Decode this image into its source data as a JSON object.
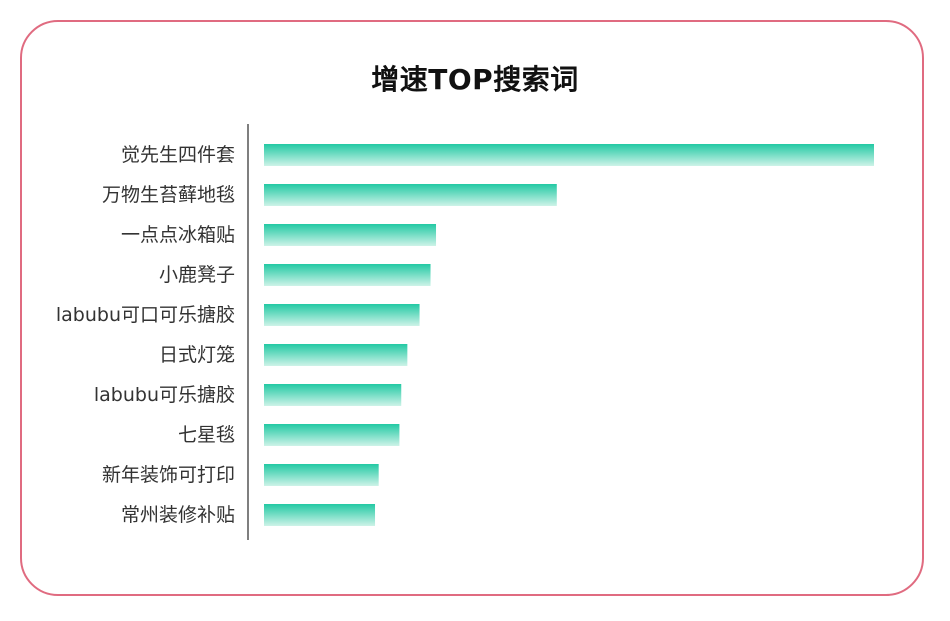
{
  "chart_data": {
    "type": "bar",
    "orientation": "horizontal",
    "title": "增速TOP搜索词",
    "categories": [
      "觉先生四件套",
      "万物生苔藓地毯",
      "一点点冰箱贴",
      "小鹿凳子",
      "labubu可口可乐搪胶",
      "日式灯笼",
      "labubu可乐搪胶",
      "七星毯",
      "新年装饰可打印",
      "常州装修补贴"
    ],
    "values": [
      100,
      48,
      28.2,
      27.3,
      25.5,
      23.5,
      22.5,
      22.2,
      18.8,
      18.2
    ],
    "xlim": [
      0,
      100
    ],
    "grid": false,
    "legend": "none",
    "colors": {
      "bar_top": "#23c9a4",
      "bar_bottom": "#cdf3e8",
      "axis": "#555555",
      "border": "#e06b80"
    }
  }
}
